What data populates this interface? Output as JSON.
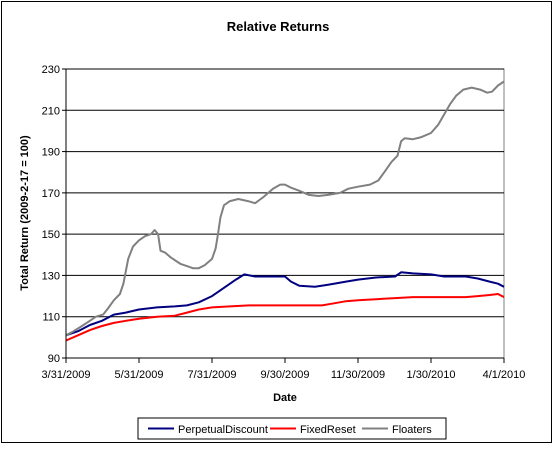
{
  "chart_data": {
    "type": "line",
    "title": "Relative Returns",
    "xlabel": "Date",
    "ylabel": "Total Return (2009-2-17 = 100)",
    "ylim": [
      90,
      230
    ],
    "yticks": [
      90,
      110,
      130,
      150,
      170,
      190,
      210,
      230
    ],
    "xlim": [
      "2009-03-31",
      "2010-04-01"
    ],
    "xticks": [
      {
        "date": "2009-03-31",
        "label": "3/31/2009"
      },
      {
        "date": "2009-05-31",
        "label": "5/31/2009"
      },
      {
        "date": "2009-07-31",
        "label": "7/31/2009"
      },
      {
        "date": "2009-09-30",
        "label": "9/30/2009"
      },
      {
        "date": "2009-11-30",
        "label": "11/30/2009"
      },
      {
        "date": "2010-01-30",
        "label": "1/30/2010"
      },
      {
        "date": "2010-04-01",
        "label": "4/1/2010"
      }
    ],
    "grid": "horizontal",
    "legend": "bottom",
    "series": [
      {
        "name": "PerpetualDiscount",
        "color": "#000080",
        "points": [
          [
            "2009-03-31",
            101
          ],
          [
            "2009-04-10",
            103
          ],
          [
            "2009-04-20",
            106
          ],
          [
            "2009-04-30",
            108
          ],
          [
            "2009-05-10",
            111
          ],
          [
            "2009-05-20",
            112
          ],
          [
            "2009-05-31",
            113.5
          ],
          [
            "2009-06-15",
            114.5
          ],
          [
            "2009-06-30",
            115
          ],
          [
            "2009-07-10",
            115.5
          ],
          [
            "2009-07-20",
            117
          ],
          [
            "2009-07-31",
            120
          ],
          [
            "2009-08-10",
            124
          ],
          [
            "2009-08-20",
            128
          ],
          [
            "2009-08-27",
            130.5
          ],
          [
            "2009-09-05",
            129.5
          ],
          [
            "2009-09-20",
            129.5
          ],
          [
            "2009-09-30",
            129.5
          ],
          [
            "2009-10-05",
            127
          ],
          [
            "2009-10-12",
            125
          ],
          [
            "2009-10-25",
            124.5
          ],
          [
            "2009-11-05",
            125.5
          ],
          [
            "2009-11-20",
            127
          ],
          [
            "2009-11-30",
            128
          ],
          [
            "2009-12-15",
            129
          ],
          [
            "2009-12-31",
            129.5
          ],
          [
            "2010-01-05",
            131.5
          ],
          [
            "2010-01-15",
            131
          ],
          [
            "2010-01-30",
            130.5
          ],
          [
            "2010-02-10",
            129.5
          ],
          [
            "2010-02-28",
            129.5
          ],
          [
            "2010-03-10",
            128.5
          ],
          [
            "2010-03-20",
            127
          ],
          [
            "2010-03-27",
            126
          ],
          [
            "2010-04-01",
            124.5
          ]
        ]
      },
      {
        "name": "FixedReset",
        "color": "#ff0000",
        "points": [
          [
            "2009-03-31",
            98.5
          ],
          [
            "2009-04-10",
            101
          ],
          [
            "2009-04-20",
            103.5
          ],
          [
            "2009-04-30",
            105.5
          ],
          [
            "2009-05-10",
            107
          ],
          [
            "2009-05-20",
            108
          ],
          [
            "2009-05-31",
            109
          ],
          [
            "2009-06-15",
            110
          ],
          [
            "2009-06-30",
            110.5
          ],
          [
            "2009-07-10",
            112
          ],
          [
            "2009-07-20",
            113.5
          ],
          [
            "2009-07-31",
            114.5
          ],
          [
            "2009-08-15",
            115
          ],
          [
            "2009-08-31",
            115.5
          ],
          [
            "2009-09-15",
            115.5
          ],
          [
            "2009-09-30",
            115.5
          ],
          [
            "2009-10-15",
            115.5
          ],
          [
            "2009-10-31",
            115.5
          ],
          [
            "2009-11-10",
            116.5
          ],
          [
            "2009-11-20",
            117.5
          ],
          [
            "2009-11-30",
            118
          ],
          [
            "2009-12-15",
            118.5
          ],
          [
            "2009-12-31",
            119
          ],
          [
            "2010-01-15",
            119.5
          ],
          [
            "2010-01-30",
            119.5
          ],
          [
            "2010-02-15",
            119.5
          ],
          [
            "2010-02-28",
            119.5
          ],
          [
            "2010-03-10",
            120
          ],
          [
            "2010-03-20",
            120.5
          ],
          [
            "2010-03-27",
            121
          ],
          [
            "2010-04-01",
            119.5
          ]
        ]
      },
      {
        "name": "Floaters",
        "color": "#808080",
        "points": [
          [
            "2009-03-31",
            101
          ],
          [
            "2009-04-05",
            102.5
          ],
          [
            "2009-04-12",
            105
          ],
          [
            "2009-04-20",
            108
          ],
          [
            "2009-04-25",
            110
          ],
          [
            "2009-05-01",
            111
          ],
          [
            "2009-05-05",
            114
          ],
          [
            "2009-05-10",
            118
          ],
          [
            "2009-05-15",
            121
          ],
          [
            "2009-05-18",
            126
          ],
          [
            "2009-05-22",
            138
          ],
          [
            "2009-05-26",
            144
          ],
          [
            "2009-05-31",
            147
          ],
          [
            "2009-06-05",
            149
          ],
          [
            "2009-06-10",
            150
          ],
          [
            "2009-06-13",
            152
          ],
          [
            "2009-06-16",
            150
          ],
          [
            "2009-06-18",
            142
          ],
          [
            "2009-06-22",
            141
          ],
          [
            "2009-06-26",
            139
          ],
          [
            "2009-07-01",
            137
          ],
          [
            "2009-07-05",
            135.5
          ],
          [
            "2009-07-10",
            134.5
          ],
          [
            "2009-07-15",
            133.5
          ],
          [
            "2009-07-20",
            133.5
          ],
          [
            "2009-07-25",
            135
          ],
          [
            "2009-07-31",
            138
          ],
          [
            "2009-08-03",
            143
          ],
          [
            "2009-08-05",
            150
          ],
          [
            "2009-08-07",
            158
          ],
          [
            "2009-08-10",
            164
          ],
          [
            "2009-08-15",
            166
          ],
          [
            "2009-08-22",
            167
          ],
          [
            "2009-08-30",
            166
          ],
          [
            "2009-09-05",
            165
          ],
          [
            "2009-09-12",
            168
          ],
          [
            "2009-09-20",
            172
          ],
          [
            "2009-09-26",
            174
          ],
          [
            "2009-09-30",
            174
          ],
          [
            "2009-10-05",
            172.5
          ],
          [
            "2009-10-12",
            171
          ],
          [
            "2009-10-20",
            169
          ],
          [
            "2009-10-28",
            168.5
          ],
          [
            "2009-11-05",
            169
          ],
          [
            "2009-11-15",
            170
          ],
          [
            "2009-11-22",
            172
          ],
          [
            "2009-11-30",
            173
          ],
          [
            "2009-12-10",
            174
          ],
          [
            "2009-12-17",
            176
          ],
          [
            "2009-12-22",
            180
          ],
          [
            "2009-12-28",
            185
          ],
          [
            "2010-01-02",
            188
          ],
          [
            "2010-01-05",
            195
          ],
          [
            "2010-01-08",
            196.5
          ],
          [
            "2010-01-15",
            196
          ],
          [
            "2010-01-22",
            197
          ],
          [
            "2010-01-30",
            199
          ],
          [
            "2010-02-05",
            203
          ],
          [
            "2010-02-10",
            208
          ],
          [
            "2010-02-15",
            213
          ],
          [
            "2010-02-20",
            217
          ],
          [
            "2010-02-26",
            220
          ],
          [
            "2010-03-05",
            221
          ],
          [
            "2010-03-12",
            220
          ],
          [
            "2010-03-18",
            218.5
          ],
          [
            "2010-03-22",
            219
          ],
          [
            "2010-03-27",
            222
          ],
          [
            "2010-04-01",
            224
          ]
        ]
      }
    ]
  }
}
